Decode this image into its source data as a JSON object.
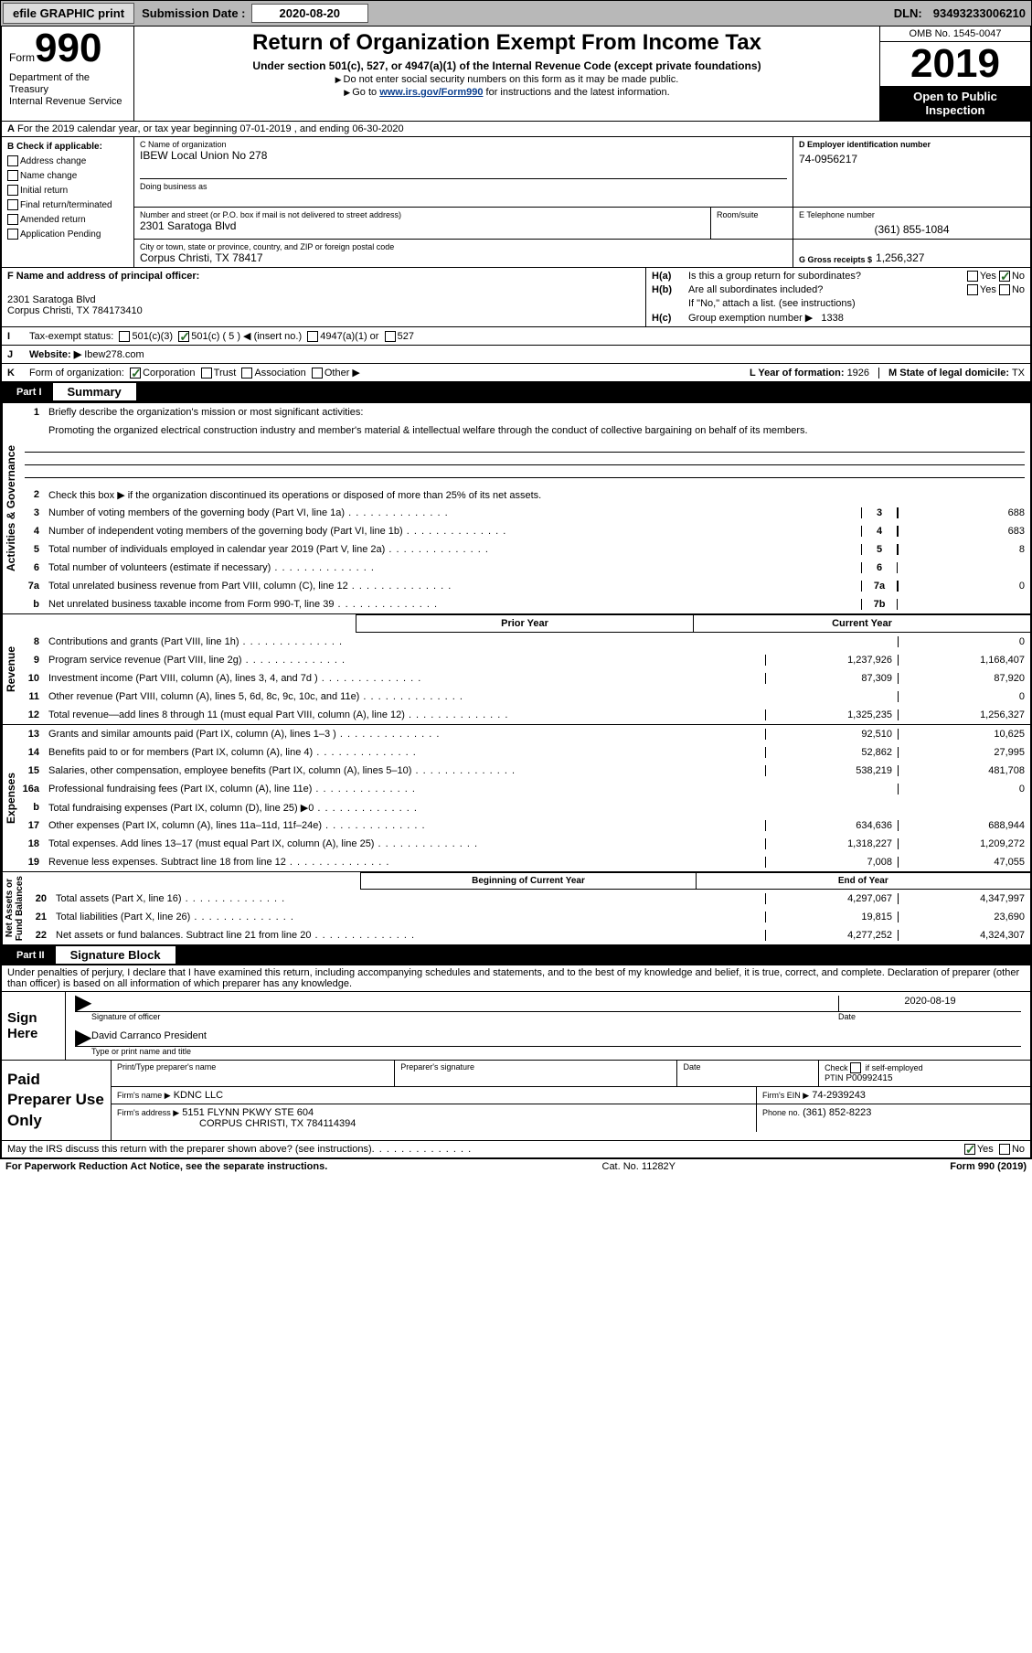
{
  "topbar": {
    "efile_btn": "efile GRAPHIC print",
    "subdate_label": "Submission Date :",
    "subdate_value": "2020-08-20",
    "dln_label": "DLN:",
    "dln_value": "93493233006210"
  },
  "header": {
    "form_word": "Form",
    "form_num": "990",
    "dept": "Department of the Treasury\nInternal Revenue Service",
    "title": "Return of Organization Exempt From Income Tax",
    "subtitle": "Under section 501(c), 527, or 4947(a)(1) of the Internal Revenue Code (except private foundations)",
    "note1": "Do not enter social security numbers on this form as it may be made public.",
    "note2_pre": "Go to ",
    "note2_link": "www.irs.gov/Form990",
    "note2_post": " for instructions and the latest information.",
    "omb": "OMB No. 1545-0047",
    "year": "2019",
    "open_public": "Open to Public Inspection"
  },
  "rowA": {
    "text": "For the 2019 calendar year, or tax year beginning 07-01-2019   , and ending 06-30-2020",
    "prefix": "A"
  },
  "colB": {
    "header": "B Check if applicable:",
    "items": [
      "Address change",
      "Name change",
      "Initial return",
      "Final return/terminated",
      "Amended return",
      "Application Pending"
    ]
  },
  "colC": {
    "name_label": "C Name of organization",
    "name_value": "IBEW Local Union No 278",
    "dba_label": "Doing business as",
    "addr_label": "Number and street (or P.O. box if mail is not delivered to street address)",
    "room_label": "Room/suite",
    "addr_value": "2301 Saratoga Blvd",
    "city_label": "City or town, state or province, country, and ZIP or foreign postal code",
    "city_value": "Corpus Christi, TX  78417"
  },
  "colD": {
    "ein_label": "D Employer identification number",
    "ein_value": "74-0956217",
    "phone_label": "E Telephone number",
    "phone_value": "(361) 855-1084",
    "gross_label": "G Gross receipts $",
    "gross_value": "1,256,327"
  },
  "rowF": {
    "label": "F  Name and address of principal officer:",
    "addr1": "2301 Saratoga Blvd",
    "addr2": "Corpus Christi, TX  784173410"
  },
  "rowH": {
    "ha_label": "Is this a group return for subordinates?",
    "ha_prefix": "H(a)",
    "hb_prefix": "H(b)",
    "hb_label": "Are all subordinates included?",
    "hb_note": "If \"No,\" attach a list. (see instructions)",
    "hc_prefix": "H(c)",
    "hc_label": "Group exemption number ▶",
    "hc_value": "1338",
    "yes": "Yes",
    "no": "No"
  },
  "rowI": {
    "label": "Tax-exempt status:",
    "prefix": "I",
    "opts": [
      "501(c)(3)",
      "501(c) ( 5 ) ◀ (insert no.)",
      "4947(a)(1) or",
      "527"
    ]
  },
  "rowJ": {
    "prefix": "J",
    "label": "Website: ▶",
    "value": "Ibew278.com"
  },
  "rowK": {
    "prefix": "K",
    "label": "Form of organization:",
    "opts": [
      "Corporation",
      "Trust",
      "Association",
      "Other ▶"
    ]
  },
  "rowL": {
    "l_label": "L Year of formation:",
    "l_value": "1926",
    "m_label": "M State of legal domicile:",
    "m_value": "TX"
  },
  "part1": {
    "label": "Part I",
    "title": "Summary"
  },
  "summary": {
    "gov_label": "Activities & Governance",
    "rev_label": "Revenue",
    "exp_label": "Expenses",
    "net_label": "Net Assets or\nFund Balances",
    "line1_label": "Briefly describe the organization's mission or most significant activities:",
    "line1_text": "Promoting the organized electrical construction industry and member's material & intellectual welfare through the conduct of collective bargaining on behalf of its members.",
    "line2": "Check this box ▶  if the organization discontinued its operations or disposed of more than 25% of its net assets.",
    "prior_year": "Prior Year",
    "current_year": "Current Year",
    "beg_year": "Beginning of Current Year",
    "end_year": "End of Year",
    "rows_gov": [
      {
        "n": "3",
        "t": "Number of voting members of the governing body (Part VI, line 1a)",
        "box": "3",
        "v": "688"
      },
      {
        "n": "4",
        "t": "Number of independent voting members of the governing body (Part VI, line 1b)",
        "box": "4",
        "v": "683"
      },
      {
        "n": "5",
        "t": "Total number of individuals employed in calendar year 2019 (Part V, line 2a)",
        "box": "5",
        "v": "8"
      },
      {
        "n": "6",
        "t": "Total number of volunteers (estimate if necessary)",
        "box": "6",
        "v": ""
      },
      {
        "n": "7a",
        "t": "Total unrelated business revenue from Part VIII, column (C), line 12",
        "box": "7a",
        "v": "0"
      },
      {
        "n": "b",
        "t": "Net unrelated business taxable income from Form 990-T, line 39",
        "box": "7b",
        "v": ""
      }
    ],
    "rows_rev": [
      {
        "n": "8",
        "t": "Contributions and grants (Part VIII, line 1h)",
        "py": "",
        "cy": "0"
      },
      {
        "n": "9",
        "t": "Program service revenue (Part VIII, line 2g)",
        "py": "1,237,926",
        "cy": "1,168,407"
      },
      {
        "n": "10",
        "t": "Investment income (Part VIII, column (A), lines 3, 4, and 7d )",
        "py": "87,309",
        "cy": "87,920"
      },
      {
        "n": "11",
        "t": "Other revenue (Part VIII, column (A), lines 5, 6d, 8c, 9c, 10c, and 11e)",
        "py": "",
        "cy": "0"
      },
      {
        "n": "12",
        "t": "Total revenue—add lines 8 through 11 (must equal Part VIII, column (A), line 12)",
        "py": "1,325,235",
        "cy": "1,256,327"
      }
    ],
    "rows_exp": [
      {
        "n": "13",
        "t": "Grants and similar amounts paid (Part IX, column (A), lines 1–3 )",
        "py": "92,510",
        "cy": "10,625"
      },
      {
        "n": "14",
        "t": "Benefits paid to or for members (Part IX, column (A), line 4)",
        "py": "52,862",
        "cy": "27,995"
      },
      {
        "n": "15",
        "t": "Salaries, other compensation, employee benefits (Part IX, column (A), lines 5–10)",
        "py": "538,219",
        "cy": "481,708"
      },
      {
        "n": "16a",
        "t": "Professional fundraising fees (Part IX, column (A), line 11e)",
        "py": "",
        "cy": "0"
      },
      {
        "n": "b",
        "t": "Total fundraising expenses (Part IX, column (D), line 25) ▶0",
        "py": "shaded",
        "cy": "shaded"
      },
      {
        "n": "17",
        "t": "Other expenses (Part IX, column (A), lines 11a–11d, 11f–24e)",
        "py": "634,636",
        "cy": "688,944"
      },
      {
        "n": "18",
        "t": "Total expenses. Add lines 13–17 (must equal Part IX, column (A), line 25)",
        "py": "1,318,227",
        "cy": "1,209,272"
      },
      {
        "n": "19",
        "t": "Revenue less expenses. Subtract line 18 from line 12",
        "py": "7,008",
        "cy": "47,055"
      }
    ],
    "rows_net": [
      {
        "n": "20",
        "t": "Total assets (Part X, line 16)",
        "py": "4,297,067",
        "cy": "4,347,997"
      },
      {
        "n": "21",
        "t": "Total liabilities (Part X, line 26)",
        "py": "19,815",
        "cy": "23,690"
      },
      {
        "n": "22",
        "t": "Net assets or fund balances. Subtract line 21 from line 20",
        "py": "4,277,252",
        "cy": "4,324,307"
      }
    ]
  },
  "part2": {
    "label": "Part II",
    "title": "Signature Block",
    "decl": "Under penalties of perjury, I declare that I have examined this return, including accompanying schedules and statements, and to the best of my knowledge and belief, it is true, correct, and complete. Declaration of preparer (other than officer) is based on all information of which preparer has any knowledge."
  },
  "sign": {
    "left": "Sign Here",
    "sig_label": "Signature of officer",
    "date_label": "Date",
    "date_value": "2020-08-19",
    "name_value": "David Carranco President",
    "name_label": "Type or print name and title"
  },
  "preparer": {
    "left": "Paid Preparer Use Only",
    "print_label": "Print/Type preparer's name",
    "sig_label": "Preparer's signature",
    "date_label": "Date",
    "check_label": "Check         if self-employed",
    "ptin_label": "PTIN",
    "ptin_value": "P00992415",
    "firm_label": "Firm's name    ▶",
    "firm_value": "KDNC LLC",
    "ein_label": "Firm's EIN ▶",
    "ein_value": "74-2939243",
    "addr_label": "Firm's address ▶",
    "addr_value": "5151 FLYNN PKWY STE 604",
    "addr_value2": "CORPUS CHRISTI, TX  784114394",
    "phone_label": "Phone no.",
    "phone_value": "(361) 852-8223"
  },
  "discuss": {
    "text": "May the IRS discuss this return with the preparer shown above? (see instructions)",
    "yes": "Yes",
    "no": "No"
  },
  "footer": {
    "left": "For Paperwork Reduction Act Notice, see the separate instructions.",
    "mid": "Cat. No. 11282Y",
    "right": "Form 990 (2019)"
  }
}
